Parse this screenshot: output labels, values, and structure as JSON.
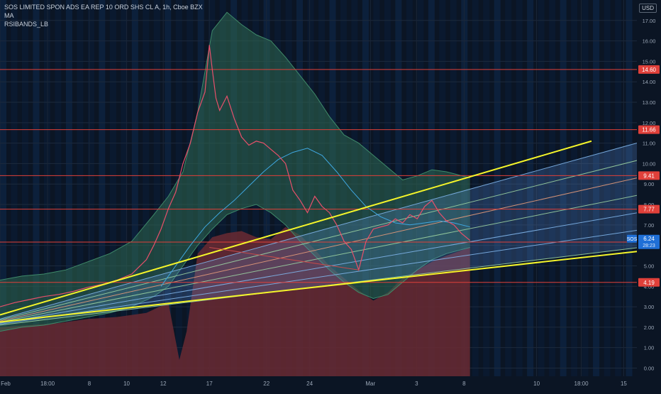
{
  "legend": {
    "symbol_line": "SOS LIMITED SPON ADS EA REP 10 ORD SHS CL A, 1h, Cboe BZX",
    "indicator1": "MA",
    "indicator2": "RSIBANDS_LB"
  },
  "currency": "USD",
  "chart_data": {
    "type": "line",
    "title": "SOS LIMITED SPON ADS EA REP 10 ORD SHS CL A, 1h, Cboe BZX",
    "xlabel": "",
    "ylabel": "",
    "ylim": [
      -0.4,
      18.0
    ],
    "y_ticks": [
      0.0,
      1.0,
      2.0,
      3.0,
      4.0,
      5.0,
      6.0,
      7.0,
      8.0,
      9.0,
      10.0,
      11.0,
      12.0,
      13.0,
      14.0,
      15.0,
      16.0,
      17.0
    ],
    "x_ticks": [
      {
        "label": "Feb",
        "t": 0
      },
      {
        "label": "18:00",
        "t": 6.5
      },
      {
        "label": "8",
        "t": 12.2
      },
      {
        "label": "10",
        "t": 17.3
      },
      {
        "label": "12",
        "t": 22.3
      },
      {
        "label": "17",
        "t": 28.6
      },
      {
        "label": "22",
        "t": 36.4
      },
      {
        "label": "24",
        "t": 42.3
      },
      {
        "label": "Mar",
        "t": 50.6
      },
      {
        "label": "3",
        "t": 56.9
      },
      {
        "label": "8",
        "t": 63.4
      },
      {
        "label": "10",
        "t": 73.3
      },
      {
        "label": "18:00",
        "t": 79.4
      },
      {
        "label": "15",
        "t": 85.2
      }
    ],
    "last_bar_t": 64.2,
    "grid": true,
    "horizontal_levels": [
      {
        "price": 14.6,
        "label": "14.60"
      },
      {
        "price": 11.66,
        "label": "11.66"
      },
      {
        "price": 9.41,
        "label": "9.41"
      },
      {
        "price": 7.77,
        "label": "7.77"
      },
      {
        "price": 6.16,
        "label": "6.16"
      },
      {
        "price": 4.19,
        "label": "4.19"
      }
    ],
    "current_price": {
      "symbol": "SOS",
      "price": 6.24,
      "label": "6.24",
      "countdown": "28:23"
    },
    "price_path": [
      [
        0,
        3.0
      ],
      [
        2,
        3.2
      ],
      [
        4,
        3.35
      ],
      [
        6,
        3.5
      ],
      [
        8,
        3.6
      ],
      [
        10,
        3.75
      ],
      [
        12,
        3.95
      ],
      [
        14,
        4.1
      ],
      [
        16,
        4.3
      ],
      [
        18,
        4.6
      ],
      [
        20,
        5.3
      ],
      [
        21,
        6.0
      ],
      [
        22,
        6.8
      ],
      [
        23,
        7.8
      ],
      [
        24,
        8.6
      ],
      [
        25,
        10.0
      ],
      [
        26,
        11.0
      ],
      [
        27,
        12.5
      ],
      [
        28,
        13.5
      ],
      [
        28.6,
        15.8
      ],
      [
        29,
        14.6
      ],
      [
        29.5,
        13.2
      ],
      [
        30,
        12.6
      ],
      [
        31,
        13.3
      ],
      [
        32,
        12.2
      ],
      [
        33,
        11.3
      ],
      [
        34,
        10.9
      ],
      [
        35,
        11.1
      ],
      [
        36,
        11.0
      ],
      [
        37,
        10.7
      ],
      [
        38,
        10.4
      ],
      [
        39,
        10.0
      ],
      [
        40,
        8.7
      ],
      [
        41,
        8.2
      ],
      [
        42,
        7.6
      ],
      [
        43,
        8.4
      ],
      [
        44,
        7.9
      ],
      [
        45,
        7.6
      ],
      [
        46,
        7.0
      ],
      [
        47,
        6.2
      ],
      [
        48,
        5.8
      ],
      [
        49,
        4.8
      ],
      [
        50,
        6.2
      ],
      [
        51,
        6.8
      ],
      [
        52,
        6.9
      ],
      [
        53,
        7.0
      ],
      [
        54,
        7.3
      ],
      [
        55,
        7.1
      ],
      [
        56,
        7.5
      ],
      [
        57,
        7.3
      ],
      [
        58,
        7.9
      ],
      [
        59,
        8.2
      ],
      [
        60,
        7.6
      ],
      [
        61,
        7.2
      ],
      [
        62,
        7.0
      ],
      [
        63,
        6.6
      ],
      [
        64.2,
        6.24
      ]
    ],
    "ma_path": [
      [
        22,
        4.0
      ],
      [
        24,
        5.0
      ],
      [
        26,
        6.0
      ],
      [
        28,
        6.9
      ],
      [
        30,
        7.6
      ],
      [
        32,
        8.2
      ],
      [
        34,
        8.9
      ],
      [
        36,
        9.6
      ],
      [
        38,
        10.2
      ],
      [
        40,
        10.55
      ],
      [
        42,
        10.75
      ],
      [
        44,
        10.4
      ],
      [
        46,
        9.6
      ],
      [
        48,
        8.7
      ],
      [
        50,
        7.9
      ],
      [
        52,
        7.4
      ],
      [
        54,
        7.1
      ],
      [
        56,
        7.0
      ],
      [
        58,
        7.1
      ],
      [
        60,
        7.2
      ],
      [
        62,
        7.1
      ],
      [
        64.2,
        6.9
      ]
    ],
    "band_upper": [
      [
        0,
        4.3
      ],
      [
        3,
        4.5
      ],
      [
        6,
        4.6
      ],
      [
        9,
        4.8
      ],
      [
        12,
        5.2
      ],
      [
        15,
        5.6
      ],
      [
        18,
        6.2
      ],
      [
        21,
        7.5
      ],
      [
        23,
        8.4
      ],
      [
        25,
        9.6
      ],
      [
        27,
        12.5
      ],
      [
        29,
        16.5
      ],
      [
        31,
        17.4
      ],
      [
        33,
        16.8
      ],
      [
        35,
        16.3
      ],
      [
        37,
        16.0
      ],
      [
        39,
        15.2
      ],
      [
        41,
        14.3
      ],
      [
        43,
        13.4
      ],
      [
        45,
        12.3
      ],
      [
        47,
        11.4
      ],
      [
        49,
        11.0
      ],
      [
        51,
        10.4
      ],
      [
        53,
        9.8
      ],
      [
        55,
        9.2
      ],
      [
        57,
        9.4
      ],
      [
        59,
        9.7
      ],
      [
        61,
        9.6
      ],
      [
        64.2,
        9.3
      ]
    ],
    "band_lower": [
      [
        0,
        1.8
      ],
      [
        3,
        2.0
      ],
      [
        6,
        2.1
      ],
      [
        9,
        2.3
      ],
      [
        12,
        2.5
      ],
      [
        15,
        2.7
      ],
      [
        18,
        3.0
      ],
      [
        21,
        3.5
      ],
      [
        23,
        4.0
      ],
      [
        25,
        5.0
      ],
      [
        27,
        6.0
      ],
      [
        29,
        6.8
      ],
      [
        31,
        7.5
      ],
      [
        33,
        7.8
      ],
      [
        35,
        8.0
      ],
      [
        37,
        7.6
      ],
      [
        39,
        7.0
      ],
      [
        41,
        6.2
      ],
      [
        43,
        5.5
      ],
      [
        45,
        4.8
      ],
      [
        47,
        4.2
      ],
      [
        49,
        3.7
      ],
      [
        51,
        3.4
      ],
      [
        53,
        3.6
      ],
      [
        55,
        4.2
      ],
      [
        57,
        4.8
      ],
      [
        59,
        5.3
      ],
      [
        61,
        5.6
      ],
      [
        64.2,
        5.9
      ]
    ],
    "rsi_fill": [
      [
        0,
        2.0
      ],
      [
        4,
        2.1
      ],
      [
        8,
        2.2
      ],
      [
        12,
        2.4
      ],
      [
        16,
        2.5
      ],
      [
        20,
        2.7
      ],
      [
        23,
        3.2
      ],
      [
        24.5,
        0.4
      ],
      [
        25.5,
        1.8
      ],
      [
        27,
        5.6
      ],
      [
        29,
        6.4
      ],
      [
        31,
        6.6
      ],
      [
        33,
        6.7
      ],
      [
        35,
        6.4
      ],
      [
        37,
        6.3
      ],
      [
        39,
        6.9
      ],
      [
        41,
        6.5
      ],
      [
        43,
        5.8
      ],
      [
        45,
        5.0
      ],
      [
        47,
        4.4
      ],
      [
        49,
        3.8
      ],
      [
        51,
        3.3
      ],
      [
        53,
        3.7
      ],
      [
        55,
        4.4
      ],
      [
        57,
        4.8
      ],
      [
        59,
        5.2
      ],
      [
        61,
        5.5
      ],
      [
        64.2,
        5.9
      ]
    ],
    "channel": {
      "start_t": 0,
      "end_t": 92,
      "upper_start": 2.4,
      "upper_end": 11.5,
      "lower_start": 2.1,
      "lower_end": 6.1,
      "inner_lines": 5
    },
    "trendlines": [
      {
        "t0": 0,
        "y0": 2.6,
        "t1": 80.8,
        "y1": 11.1
      },
      {
        "t0": 0,
        "y0": 2.25,
        "t1": 92,
        "y1": 5.9
      },
      {
        "t0": 28.6,
        "y0": 5.9,
        "t1": 49,
        "y1": 4.8
      }
    ]
  }
}
